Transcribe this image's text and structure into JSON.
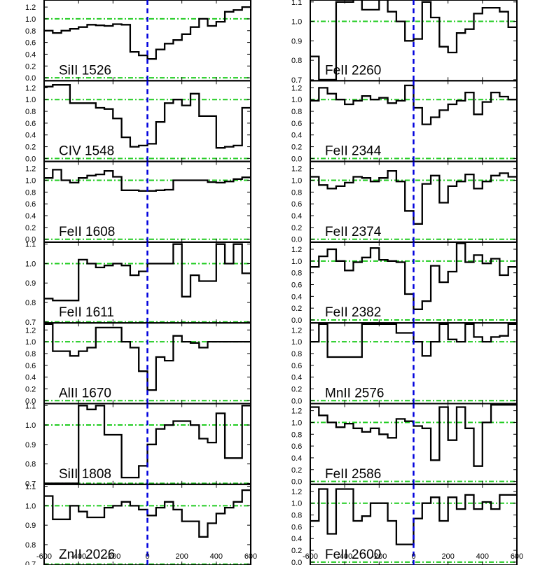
{
  "chart_data": {
    "type": "line",
    "style": {
      "spectrum_color": "#000000",
      "continuum_color": "#22cc22",
      "zero_velocity_color": "#0000dd"
    },
    "xlim": [
      -600,
      600
    ],
    "x_ticks": [
      "-600",
      "-400",
      "-200",
      "0",
      "200",
      "400",
      "600"
    ],
    "panels": [
      {
        "label": "SiII 1526",
        "column": 0,
        "row": 0,
        "ylim": [
          -0.05,
          1.32
        ],
        "yticks": [
          0.0,
          0.2,
          0.4,
          0.6,
          0.8,
          1.0,
          1.2
        ],
        "ytick_labels": [
          "0.0",
          "0.2",
          "0.4",
          "0.6",
          "0.8",
          "1.0",
          "1.2"
        ],
        "guides": [
          0.0,
          1.0
        ],
        "edges": [
          -600,
          -550,
          -500,
          -450,
          -400,
          -350,
          -300,
          -250,
          -200,
          -150,
          -100,
          -50,
          0,
          50,
          100,
          150,
          200,
          250,
          300,
          350,
          400,
          450,
          500,
          550,
          600
        ],
        "flux": [
          0.8,
          0.76,
          0.8,
          0.83,
          0.86,
          0.9,
          0.89,
          0.88,
          0.91,
          0.9,
          0.44,
          0.38,
          0.32,
          0.48,
          0.58,
          0.64,
          0.74,
          0.86,
          1.0,
          0.88,
          0.95,
          1.12,
          1.15,
          1.2
        ]
      },
      {
        "label": "CIV 1548",
        "column": 0,
        "row": 1,
        "ylim": [
          -0.05,
          1.32
        ],
        "yticks": [
          0.0,
          0.2,
          0.4,
          0.6,
          0.8,
          1.0,
          1.2
        ],
        "ytick_labels": [
          "0.0",
          "0.2",
          "0.4",
          "0.6",
          "0.8",
          "1.0",
          "1.2"
        ],
        "guides": [
          0.0,
          1.0
        ],
        "edges": [
          -600,
          -550,
          -500,
          -450,
          -400,
          -350,
          -300,
          -250,
          -200,
          -150,
          -100,
          -50,
          0,
          50,
          100,
          150,
          200,
          250,
          300,
          350,
          400,
          450,
          500,
          550,
          600
        ],
        "flux": [
          1.22,
          1.25,
          1.25,
          0.94,
          0.94,
          0.94,
          0.86,
          0.84,
          0.68,
          0.36,
          0.2,
          0.22,
          0.25,
          0.62,
          0.94,
          1.0,
          0.9,
          1.1,
          0.72,
          0.72,
          0.18,
          0.2,
          0.22,
          0.86
        ]
      },
      {
        "label": "FeII 1608",
        "column": 0,
        "row": 2,
        "ylim": [
          -0.05,
          1.32
        ],
        "yticks": [
          0.0,
          0.2,
          0.4,
          0.6,
          0.8,
          1.0,
          1.2
        ],
        "ytick_labels": [
          "0.0",
          "0.2",
          "0.4",
          "0.6",
          "0.8",
          "1.0",
          "1.2"
        ],
        "guides": [
          0.0,
          1.0
        ],
        "edges": [
          -600,
          -550,
          -500,
          -450,
          -400,
          -350,
          -300,
          -250,
          -200,
          -150,
          -100,
          -50,
          0,
          50,
          100,
          150,
          200,
          250,
          300,
          350,
          400,
          450,
          500,
          550,
          600
        ],
        "flux": [
          1.04,
          1.18,
          1.0,
          0.96,
          1.04,
          1.08,
          1.1,
          1.16,
          1.06,
          0.83,
          0.83,
          0.82,
          0.82,
          0.83,
          0.84,
          1.0,
          1.0,
          1.0,
          1.0,
          0.97,
          0.96,
          0.98,
          1.02,
          1.05
        ]
      },
      {
        "label": "FeII 1611",
        "column": 0,
        "row": 3,
        "ylim": [
          0.695,
          1.11
        ],
        "yticks": [
          0.7,
          0.8,
          0.9,
          1.0,
          1.1
        ],
        "ytick_labels": [
          "0.7",
          "0.8",
          "0.9",
          "1.0",
          "1.1"
        ],
        "guides": [
          0.7,
          1.0
        ],
        "edges": [
          -600,
          -550,
          -500,
          -450,
          -400,
          -350,
          -300,
          -250,
          -200,
          -150,
          -100,
          -50,
          0,
          50,
          100,
          150,
          200,
          250,
          300,
          350,
          400,
          450,
          500,
          550,
          600
        ],
        "flux": [
          0.82,
          0.81,
          0.81,
          0.81,
          1.02,
          1.0,
          0.98,
          0.99,
          1.0,
          0.99,
          0.94,
          0.96,
          1.0,
          1.0,
          1.0,
          1.1,
          0.83,
          0.94,
          0.91,
          0.91,
          1.1,
          1.0,
          1.1,
          0.95
        ]
      },
      {
        "label": "AlII 1670",
        "column": 0,
        "row": 4,
        "ylim": [
          -0.05,
          1.32
        ],
        "yticks": [
          0.0,
          0.2,
          0.4,
          0.6,
          0.8,
          1.0,
          1.2
        ],
        "ytick_labels": [
          "0.0",
          "0.2",
          "0.4",
          "0.6",
          "0.8",
          "1.0",
          "1.2"
        ],
        "guides": [
          0.0,
          1.0
        ],
        "edges": [
          -600,
          -550,
          -500,
          -450,
          -400,
          -350,
          -300,
          -250,
          -200,
          -150,
          -100,
          -50,
          0,
          50,
          100,
          150,
          200,
          250,
          300,
          350,
          400,
          450,
          500,
          550,
          600
        ],
        "flux": [
          1.3,
          0.84,
          0.84,
          0.76,
          0.84,
          0.9,
          1.24,
          1.24,
          1.24,
          1.0,
          0.9,
          0.5,
          0.18,
          0.74,
          0.68,
          1.1,
          1.0,
          0.98,
          0.9,
          1.0,
          1.0,
          1.0,
          1.0,
          1.0
        ]
      },
      {
        "label": "SiII 1808",
        "column": 0,
        "row": 5,
        "ylim": [
          0.695,
          1.11
        ],
        "yticks": [
          0.7,
          0.8,
          0.9,
          1.0,
          1.1
        ],
        "ytick_labels": [
          "0.7",
          "0.8",
          "0.9",
          "1.0",
          "1.1"
        ],
        "guides": [
          0.7,
          1.0
        ],
        "edges": [
          -600,
          -550,
          -500,
          -450,
          -400,
          -350,
          -300,
          -250,
          -200,
          -150,
          -100,
          -50,
          0,
          50,
          100,
          150,
          200,
          250,
          300,
          350,
          400,
          450,
          500,
          550,
          600
        ],
        "flux": [
          0.7,
          0.7,
          0.7,
          0.7,
          1.1,
          1.08,
          1.1,
          0.95,
          0.95,
          0.73,
          0.73,
          0.79,
          0.9,
          0.98,
          1.0,
          1.02,
          1.02,
          1.0,
          0.93,
          0.91,
          1.06,
          0.83,
          0.83,
          1.1
        ]
      },
      {
        "label": "ZnII 2026",
        "column": 0,
        "row": 6,
        "ylim": [
          0.695,
          1.11
        ],
        "yticks": [
          0.7,
          0.8,
          0.9,
          1.0,
          1.1
        ],
        "ytick_labels": [
          "0.7",
          "0.8",
          "0.9",
          "1.0",
          "1.1"
        ],
        "guides": [
          0.7,
          1.0
        ],
        "edges": [
          -600,
          -550,
          -500,
          -450,
          -400,
          -350,
          -300,
          -250,
          -200,
          -150,
          -100,
          -50,
          0,
          50,
          100,
          150,
          200,
          250,
          300,
          350,
          400,
          450,
          500,
          550,
          600
        ],
        "flux": [
          1.05,
          0.93,
          0.93,
          1.0,
          0.97,
          0.94,
          0.94,
          0.99,
          1.0,
          1.02,
          1.0,
          0.98,
          0.95,
          0.99,
          1.02,
          0.98,
          0.92,
          0.92,
          0.84,
          0.91,
          0.96,
          0.99,
          1.02,
          1.08
        ]
      },
      {
        "label": "FeII 2260",
        "column": 1,
        "row": 0,
        "ylim": [
          0.695,
          1.11
        ],
        "yticks": [
          0.7,
          0.8,
          0.9,
          1.0,
          1.1
        ],
        "ytick_labels": [
          "0.7",
          "0.8",
          "0.9",
          "1.0",
          "1.1"
        ],
        "guides": [
          1.0
        ],
        "edges": [
          -600,
          -550,
          -500,
          -450,
          -400,
          -350,
          -300,
          -250,
          -200,
          -150,
          -100,
          -50,
          0,
          50,
          100,
          150,
          200,
          250,
          300,
          350,
          400,
          450,
          500,
          550,
          600
        ],
        "flux": [
          0.82,
          0.7,
          0.7,
          1.1,
          1.1,
          1.12,
          1.06,
          1.06,
          1.12,
          1.05,
          1.0,
          0.9,
          0.91,
          1.1,
          1.02,
          0.87,
          0.84,
          0.94,
          0.96,
          1.04,
          1.07,
          1.07,
          1.05,
          0.97
        ]
      },
      {
        "label": "FeII 2344",
        "column": 1,
        "row": 1,
        "ylim": [
          -0.05,
          1.32
        ],
        "yticks": [
          0.0,
          0.2,
          0.4,
          0.6,
          0.8,
          1.0,
          1.2
        ],
        "ytick_labels": [
          "0.0",
          "0.2",
          "0.4",
          "0.6",
          "0.8",
          "1.0",
          "1.2"
        ],
        "guides": [
          0.0,
          1.0
        ],
        "edges": [
          -600,
          -550,
          -500,
          -450,
          -400,
          -350,
          -300,
          -250,
          -200,
          -150,
          -100,
          -50,
          0,
          50,
          100,
          150,
          200,
          250,
          300,
          350,
          400,
          450,
          500,
          550,
          600
        ],
        "flux": [
          0.98,
          1.2,
          1.1,
          1.0,
          0.92,
          0.98,
          1.06,
          1.0,
          1.03,
          0.94,
          0.98,
          1.24,
          0.86,
          0.58,
          0.7,
          0.82,
          0.92,
          0.98,
          1.12,
          0.75,
          0.96,
          1.12,
          1.05,
          1.0
        ]
      },
      {
        "label": "FeII 2374",
        "column": 1,
        "row": 2,
        "ylim": [
          -0.05,
          1.32
        ],
        "yticks": [
          0.0,
          0.2,
          0.4,
          0.6,
          0.8,
          1.0,
          1.2
        ],
        "ytick_labels": [
          "0.0",
          "0.2",
          "0.4",
          "0.6",
          "0.8",
          "1.0",
          "1.2"
        ],
        "guides": [
          0.0,
          1.0
        ],
        "edges": [
          -600,
          -550,
          -500,
          -450,
          -400,
          -350,
          -300,
          -250,
          -200,
          -150,
          -100,
          -50,
          0,
          50,
          100,
          150,
          200,
          250,
          300,
          350,
          400,
          450,
          500,
          550,
          600
        ],
        "flux": [
          1.06,
          0.92,
          0.86,
          0.9,
          0.96,
          1.06,
          1.04,
          0.98,
          1.04,
          1.16,
          0.98,
          0.48,
          0.26,
          0.94,
          1.08,
          0.62,
          0.9,
          0.98,
          1.1,
          0.86,
          0.98,
          1.08,
          1.12,
          1.06
        ]
      },
      {
        "label": "FeII 2382",
        "column": 1,
        "row": 3,
        "ylim": [
          -0.05,
          1.32
        ],
        "yticks": [
          0.0,
          0.2,
          0.4,
          0.6,
          0.8,
          1.0,
          1.2
        ],
        "ytick_labels": [
          "0.0",
          "0.2",
          "0.4",
          "0.6",
          "0.8",
          "1.0",
          "1.2"
        ],
        "guides": [
          0.0,
          1.0
        ],
        "edges": [
          -600,
          -550,
          -500,
          -450,
          -400,
          -350,
          -300,
          -250,
          -200,
          -150,
          -100,
          -50,
          0,
          50,
          100,
          150,
          200,
          250,
          300,
          350,
          400,
          450,
          500,
          550,
          600
        ],
        "flux": [
          0.9,
          1.08,
          1.2,
          1.0,
          0.84,
          0.98,
          1.06,
          1.22,
          1.02,
          1.0,
          0.98,
          0.44,
          0.18,
          0.32,
          0.92,
          0.64,
          0.82,
          1.3,
          0.98,
          1.1,
          0.96,
          1.04,
          0.76,
          0.9
        ]
      },
      {
        "label": "MnII 2576",
        "column": 1,
        "row": 4,
        "ylim": [
          -0.05,
          1.32
        ],
        "yticks": [
          0.0,
          0.2,
          0.4,
          0.6,
          0.8,
          1.0,
          1.2
        ],
        "ytick_labels": [
          "0.0",
          "0.2",
          "0.4",
          "0.6",
          "0.8",
          "1.0",
          "1.2"
        ],
        "guides": [
          0.0,
          1.0
        ],
        "edges": [
          -600,
          -550,
          -500,
          -450,
          -400,
          -350,
          -300,
          -250,
          -200,
          -150,
          -100,
          -50,
          0,
          50,
          100,
          150,
          200,
          250,
          300,
          350,
          400,
          450,
          500,
          550,
          600
        ],
        "flux": [
          1.0,
          1.3,
          0.74,
          0.74,
          0.74,
          0.74,
          1.3,
          1.3,
          1.3,
          1.3,
          1.15,
          1.15,
          1.0,
          0.76,
          1.0,
          1.3,
          1.04,
          1.0,
          1.3,
          1.08,
          1.0,
          1.08,
          1.1,
          1.3
        ]
      },
      {
        "label": "FeII 2586",
        "column": 1,
        "row": 5,
        "ylim": [
          -0.05,
          1.32
        ],
        "yticks": [
          0.0,
          0.2,
          0.4,
          0.6,
          0.8,
          1.0,
          1.2
        ],
        "ytick_labels": [
          "0.0",
          "0.2",
          "0.4",
          "0.6",
          "0.8",
          "1.0",
          "1.2"
        ],
        "guides": [
          0.0,
          1.0
        ],
        "edges": [
          -600,
          -550,
          -500,
          -450,
          -400,
          -350,
          -300,
          -250,
          -200,
          -150,
          -100,
          -50,
          0,
          50,
          100,
          150,
          200,
          250,
          300,
          350,
          400,
          450,
          500,
          550,
          600
        ],
        "flux": [
          1.26,
          1.12,
          1.0,
          0.92,
          0.98,
          0.9,
          0.84,
          0.9,
          0.8,
          0.74,
          1.06,
          1.02,
          0.94,
          0.9,
          0.36,
          1.26,
          0.7,
          1.26,
          0.9,
          0.26,
          1.0,
          1.3,
          1.3,
          1.3
        ]
      },
      {
        "label": "FeII 2600",
        "column": 1,
        "row": 6,
        "ylim": [
          -0.05,
          1.32
        ],
        "yticks": [
          0.0,
          0.2,
          0.4,
          0.6,
          0.8,
          1.0,
          1.2
        ],
        "ytick_labels": [
          "0.0",
          "0.2",
          "0.4",
          "0.6",
          "0.8",
          "1.0",
          "1.2"
        ],
        "guides": [
          0.0,
          1.0
        ],
        "edges": [
          -600,
          -550,
          -500,
          -450,
          -400,
          -350,
          -300,
          -250,
          -200,
          -150,
          -100,
          -50,
          0,
          50,
          100,
          150,
          200,
          250,
          300,
          350,
          400,
          450,
          500,
          550,
          600
        ],
        "flux": [
          0.7,
          1.24,
          0.48,
          1.24,
          1.24,
          0.7,
          0.78,
          1.0,
          1.0,
          0.7,
          0.3,
          0.3,
          0.74,
          1.0,
          1.1,
          0.7,
          1.1,
          0.9,
          1.14,
          0.9,
          1.02,
          0.9,
          1.14,
          1.14
        ]
      }
    ]
  }
}
